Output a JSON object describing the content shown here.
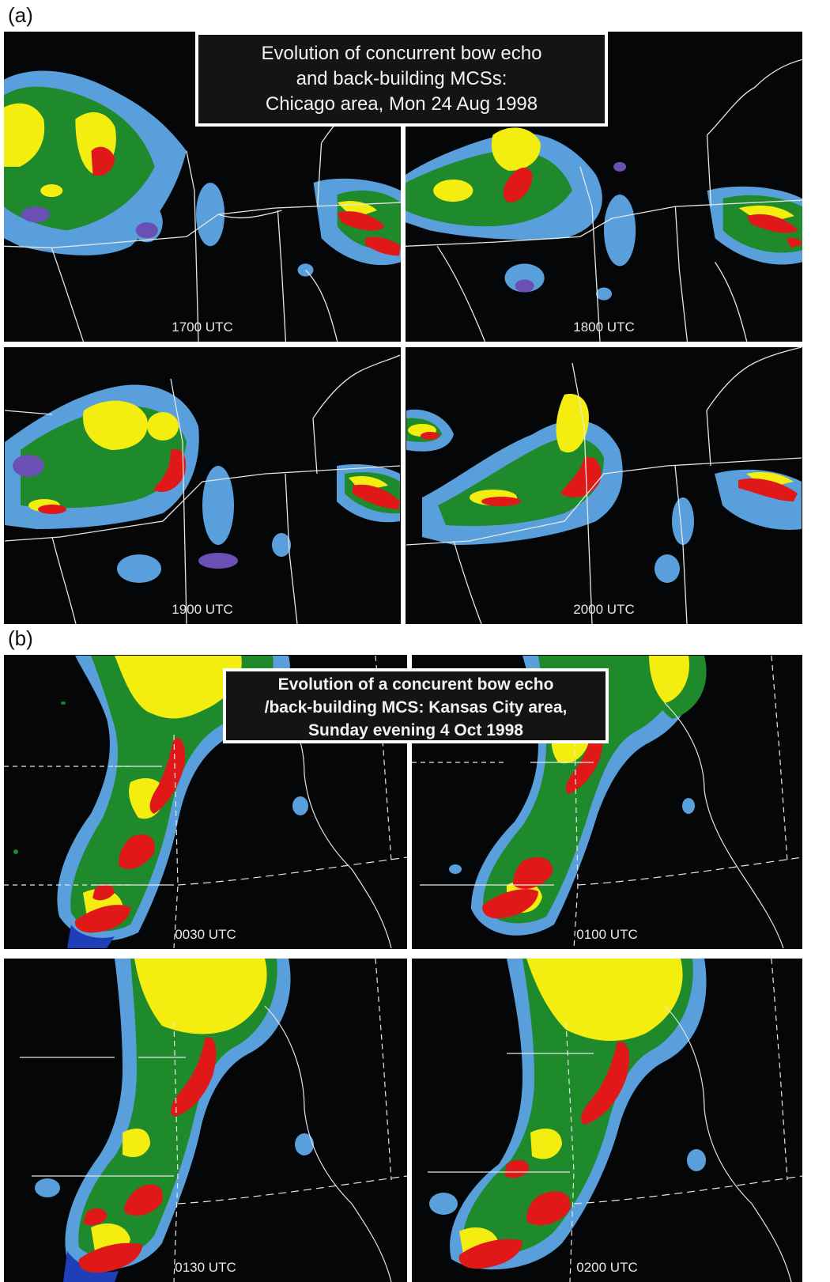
{
  "section_a": {
    "label": "(a)",
    "title_lines": [
      "Evolution of concurrent bow echo",
      "and back-building MCSs:",
      "Chicago area, Mon 24 Aug 1998"
    ],
    "panels": [
      {
        "time": "1700 UTC"
      },
      {
        "time": "1800 UTC"
      },
      {
        "time": "1900 UTC"
      },
      {
        "time": "2000 UTC"
      }
    ]
  },
  "section_b": {
    "label": "(b)",
    "title_lines": [
      "Evolution of a concurent bow echo",
      "/back-building MCS:  Kansas City area,",
      "Sunday evening 4 Oct 1998"
    ],
    "panels": [
      {
        "time": "0030 UTC"
      },
      {
        "time": "0100 UTC"
      },
      {
        "time": "0130 UTC"
      },
      {
        "time": "0200 UTC"
      }
    ]
  },
  "colors": {
    "background": "#050607",
    "light_blue": "#5ea8e8",
    "dark_blue": "#1e3fb8",
    "green": "#1f8a2c",
    "yellow": "#f4ee10",
    "red": "#e01818",
    "purple": "#6a4fb5",
    "border_line": "#e6e6e6"
  }
}
